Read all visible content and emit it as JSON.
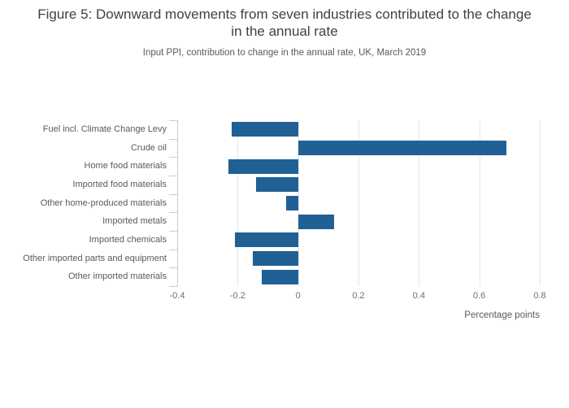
{
  "chart_data": {
    "type": "bar",
    "orientation": "horizontal",
    "title": "Figure 5: Downward movements from seven industries contributed to the change in the annual rate",
    "subtitle": "Input PPI, contribution to change in the annual rate, UK, March 2019",
    "categories": [
      "Fuel incl. Climate Change Levy",
      "Crude oil",
      "Home food materials",
      "Imported food materials",
      "Other home-produced materials",
      "Imported metals",
      "Imported chemicals",
      "Other imported parts and equipment",
      "Other imported materials"
    ],
    "values": [
      -0.22,
      0.69,
      -0.23,
      -0.14,
      -0.04,
      0.12,
      -0.21,
      -0.15,
      -0.12
    ],
    "xlabel": "Percentage points",
    "xlim": [
      -0.4,
      0.8
    ],
    "xticks": [
      -0.4,
      -0.2,
      0,
      0.2,
      0.4,
      0.6,
      0.8
    ],
    "xtick_labels": [
      "-0.4",
      "-0.2",
      "0",
      "0.2",
      "0.4",
      "0.6",
      "0.8"
    ],
    "legend": "none",
    "grid": "vertical-gridlines",
    "colors": {
      "bar": "#206095",
      "gridline": "#e6e6e6",
      "axis": "#c4ced6",
      "title_text": "#414042",
      "subtitle_text": "#58595b",
      "tick_text": "#6e6f72",
      "category_text": "#58595b"
    }
  }
}
